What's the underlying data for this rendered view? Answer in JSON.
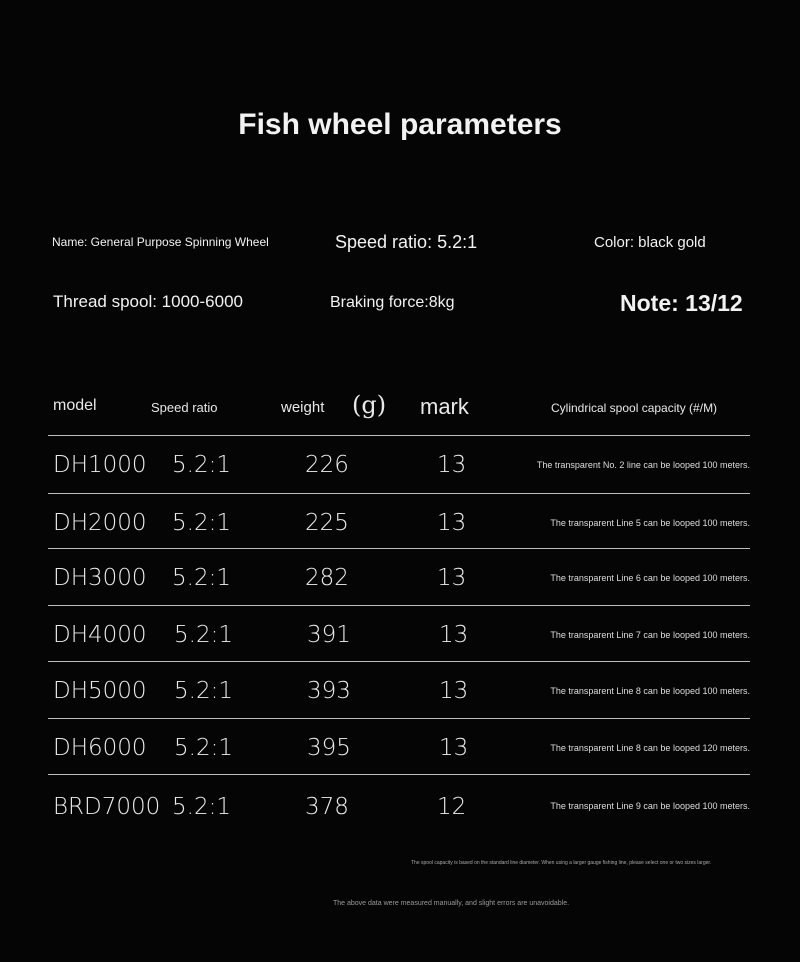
{
  "title": "Fish wheel parameters",
  "info": {
    "name": "Name: General Purpose Spinning Wheel",
    "speed_ratio": "Speed ratio: 5.2:1",
    "color": "Color: black gold",
    "thread_spool": "Thread spool: 1000-6000",
    "braking_force": "Braking force:8kg",
    "note": "Note: 13/12"
  },
  "table": {
    "headers": [
      "model",
      "Speed ratio",
      "weight",
      "(g)",
      "mark",
      "Cylindrical spool capacity (#/M)"
    ],
    "rows": [
      {
        "model": "DH1000",
        "ratio": "5.2:1",
        "weight": "226",
        "mark": "13",
        "capacity": "The transparent No. 2 line can be looped 100 meters."
      },
      {
        "model": "DH2000",
        "ratio": "5.2:1",
        "weight": "225",
        "mark": "13",
        "capacity": "The transparent Line 5 can be looped 100 meters."
      },
      {
        "model": "DH3000",
        "ratio": "5.2:1",
        "weight": "282",
        "mark": "13",
        "capacity": "The transparent Line 6 can be looped 100 meters."
      },
      {
        "model": "DH4000",
        "ratio": "5.2:1",
        "weight": "391",
        "mark": "13",
        "capacity": "The transparent Line 7 can be looped 100 meters."
      },
      {
        "model": "DH5000",
        "ratio": "5.2:1",
        "weight": "393",
        "mark": "13",
        "capacity": "The transparent Line 8 can be looped 100 meters."
      },
      {
        "model": "DH6000",
        "ratio": "5.2:1",
        "weight": "395",
        "mark": "13",
        "capacity": "The transparent Line 8 can be looped 120 meters."
      },
      {
        "model": "BRD7000",
        "ratio": "5.2:1",
        "weight": "378",
        "mark": "12",
        "capacity": "The transparent Line 9 can be looped 100 meters."
      }
    ]
  },
  "footnote": "The spool capacity is based on the standard line diameter. When using a larger gauge fishing line, please select one or two sizes larger.",
  "disclaimer": "The above data were measured manually, and slight errors are unavoidable."
}
